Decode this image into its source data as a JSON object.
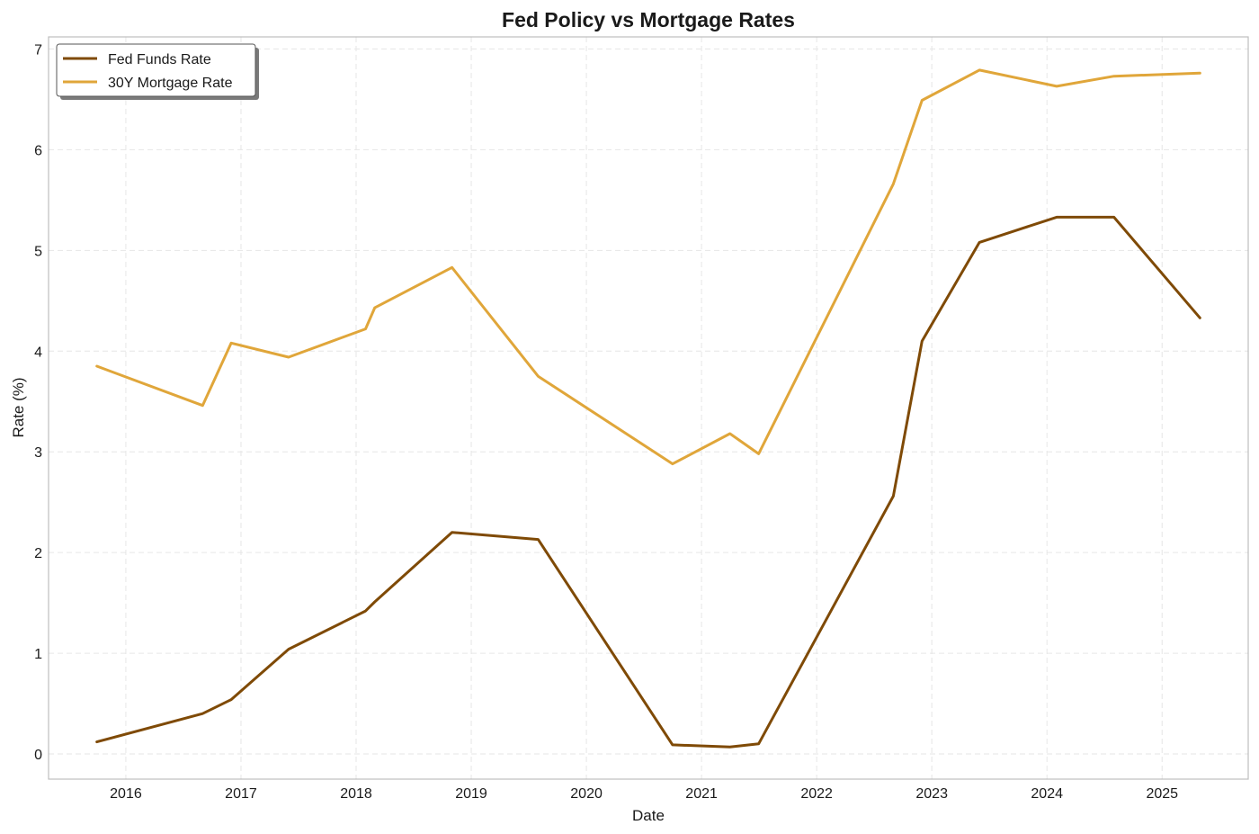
{
  "chart_data": {
    "type": "line",
    "title": "Fed Policy vs Mortgage Rates",
    "xlabel": "Date",
    "ylabel": "Rate (%)",
    "xlim": [
      "2015-05-01",
      "2025-10-01"
    ],
    "ylim": [
      -0.25,
      7.12
    ],
    "x_ticks": [
      "2016",
      "2017",
      "2018",
      "2019",
      "2020",
      "2021",
      "2022",
      "2023",
      "2024",
      "2025"
    ],
    "y_ticks": [
      "0",
      "1",
      "2",
      "3",
      "4",
      "5",
      "6",
      "7"
    ],
    "grid": true,
    "legend_placement": "top-left",
    "series": [
      {
        "name": "Fed Funds Rate",
        "color": "#7f4a06",
        "x": [
          "2015-10-01",
          "2016-09-01",
          "2016-12-01",
          "2017-06-01",
          "2018-01-31",
          "2018-03-01",
          "2018-11-01",
          "2019-08-01",
          "2020-10-01",
          "2021-04-01",
          "2021-07-01",
          "2022-09-01",
          "2022-12-01",
          "2023-06-01",
          "2024-02-01",
          "2024-08-01",
          "2025-05-01"
        ],
        "y": [
          0.12,
          0.4,
          0.54,
          1.04,
          1.42,
          1.51,
          2.2,
          2.13,
          0.09,
          0.07,
          0.1,
          2.56,
          4.1,
          5.08,
          5.33,
          5.33,
          4.33
        ]
      },
      {
        "name": "30Y Mortgage Rate",
        "color": "#e0a63a",
        "x": [
          "2015-10-01",
          "2016-09-01",
          "2016-12-01",
          "2017-06-01",
          "2018-01-31",
          "2018-03-01",
          "2018-11-01",
          "2019-08-01",
          "2020-10-01",
          "2021-04-01",
          "2021-07-01",
          "2022-09-01",
          "2022-12-01",
          "2023-06-01",
          "2024-02-01",
          "2024-08-01",
          "2025-05-01"
        ],
        "y": [
          3.85,
          3.46,
          4.08,
          3.94,
          4.22,
          4.43,
          4.83,
          3.75,
          2.88,
          3.18,
          2.98,
          5.66,
          6.49,
          6.79,
          6.63,
          6.73,
          6.76
        ]
      }
    ]
  }
}
